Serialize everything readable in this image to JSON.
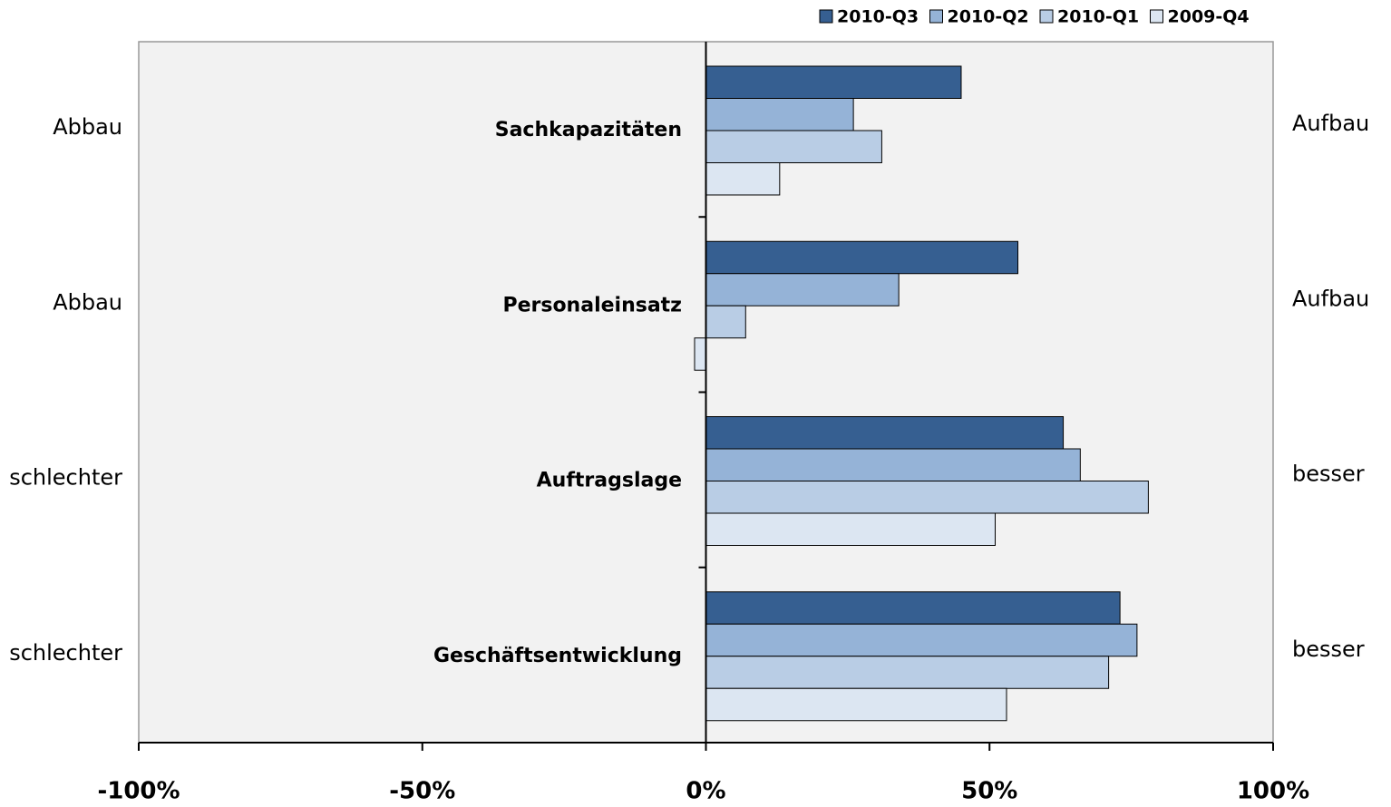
{
  "chart_data": {
    "type": "hbar",
    "categories": [
      "Sachkapazitäten",
      "Personaleinsatz",
      "Auftragslage",
      "Geschäftsentwicklung"
    ],
    "left_labels": [
      "Abbau",
      "Abbau",
      "schlechter",
      "schlechter"
    ],
    "right_labels": [
      "Aufbau",
      "Aufbau",
      "besser",
      "besser"
    ],
    "series": [
      {
        "name": "2010-Q3",
        "color": "#365f91",
        "values": [
          45,
          55,
          63,
          73
        ]
      },
      {
        "name": "2010-Q2",
        "color": "#95b3d7",
        "values": [
          26,
          34,
          66,
          76
        ]
      },
      {
        "name": "2010-Q1",
        "color": "#b9cde5",
        "values": [
          31,
          7,
          78,
          71
        ]
      },
      {
        "name": "2009-Q4",
        "color": "#dce6f2",
        "values": [
          13,
          -2,
          51,
          53
        ]
      }
    ],
    "xlim": [
      -100,
      100
    ],
    "xticks": [
      {
        "value": -100,
        "label": "-100%"
      },
      {
        "value": -50,
        "label": "-50%"
      },
      {
        "value": 0,
        "label": "0%"
      },
      {
        "value": 50,
        "label": "50%"
      },
      {
        "value": 100,
        "label": "100%"
      }
    ],
    "legend": "top-right"
  }
}
